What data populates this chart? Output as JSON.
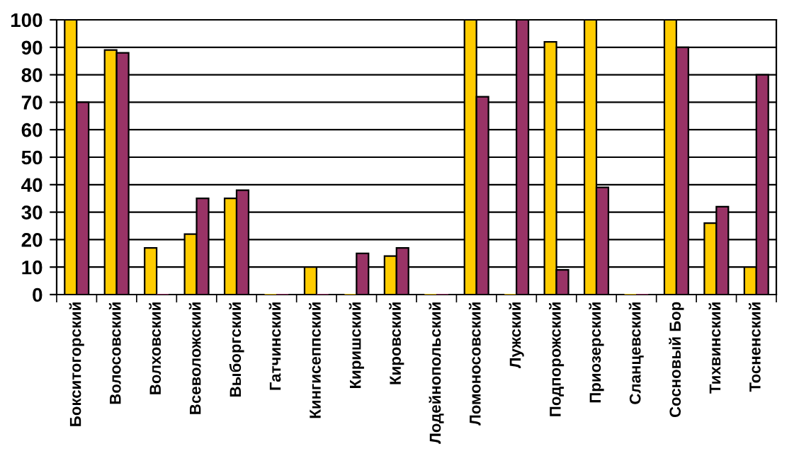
{
  "chart_data": {
    "type": "bar",
    "categories": [
      "Бокситогорский",
      "Волосовский",
      "Волховский",
      "Всеволожский",
      "Выборгский",
      "Гатчинский",
      "Кингисеппский",
      "Киришский",
      "Кировский",
      "Лодейнопольский",
      "Ломоносовский",
      "Лужский",
      "Подпорожский",
      "Приозерский",
      "Сланцевский",
      "Сосновый Бор",
      "Тихвинский",
      "Тосненский"
    ],
    "series": [
      {
        "color": "#ffcc00",
        "values": [
          100,
          89,
          17,
          22,
          35,
          0,
          10,
          0,
          14,
          0,
          100,
          0,
          92,
          100,
          0,
          100,
          26,
          10
        ]
      },
      {
        "color": "#993366",
        "values": [
          70,
          88,
          0,
          35,
          38,
          0,
          0,
          15,
          17,
          0,
          72,
          100,
          9,
          39,
          0,
          90,
          32,
          80
        ]
      }
    ],
    "ylim": [
      0,
      100
    ],
    "yticks": [
      0,
      10,
      20,
      30,
      40,
      50,
      60,
      70,
      80,
      90,
      100
    ],
    "grid": "y"
  }
}
